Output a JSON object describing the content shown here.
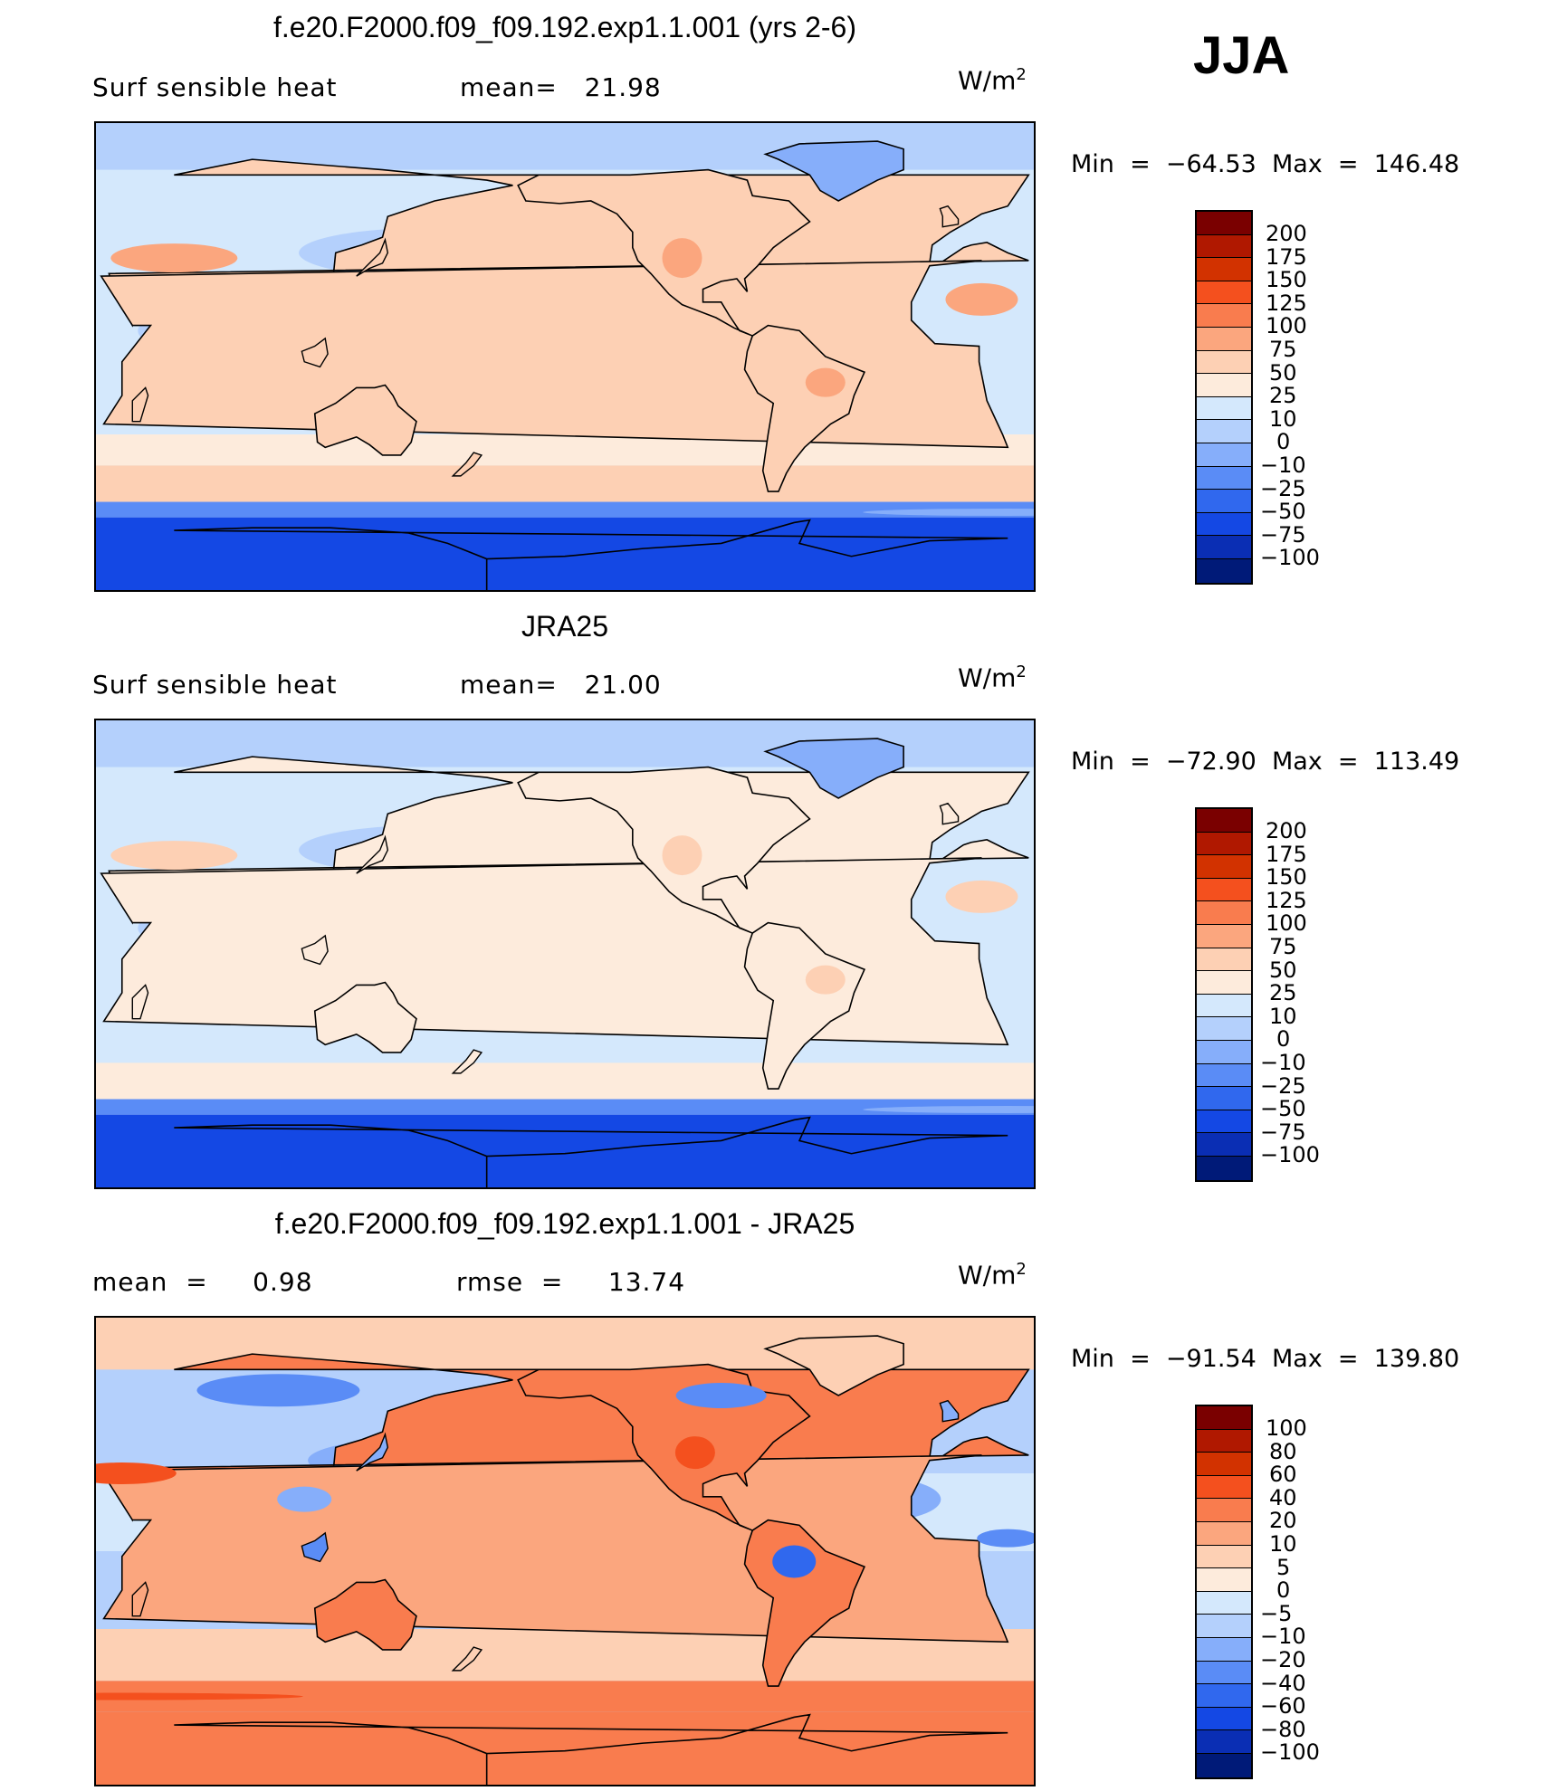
{
  "season": "JJA",
  "palette_main": [
    "#7a0000",
    "#b01800",
    "#d23200",
    "#f4501e",
    "#f97c4e",
    "#fba67e",
    "#fdd0b4",
    "#fdebdc",
    "#d4e8fc",
    "#b4d0fc",
    "#86aefa",
    "#5a8cf6",
    "#3068ee",
    "#1448e4",
    "#0a2eb4",
    "#001a78"
  ],
  "palette_diff": [
    "#7a0000",
    "#b01800",
    "#d23200",
    "#f4501e",
    "#f97c4e",
    "#fba67e",
    "#fdd0b4",
    "#fdebdc",
    "#d4e8fc",
    "#b4d0fc",
    "#86aefa",
    "#5a8cf6",
    "#3068ee",
    "#1448e4",
    "#0a2eb4",
    "#001a78"
  ],
  "panels": [
    {
      "title": "f.e20.F2000.f09_f09.192.exp1.1.001 (yrs 2-6)",
      "left_label": "Surf  sensible  heat",
      "center_label": "mean=   21.98",
      "units": "W/m",
      "units_sup": "2",
      "minmax": "Min  =  −64.53  Max  =  146.48",
      "levels": [
        "200",
        "175",
        "150",
        "125",
        "100",
        "75",
        "50",
        "25",
        "10",
        "0",
        "−10",
        "−25",
        "−50",
        "−75",
        "−100"
      ],
      "style": "model"
    },
    {
      "title": "JRA25",
      "left_label": "Surf  sensible  heat",
      "center_label": "mean=   21.00",
      "units": "W/m",
      "units_sup": "2",
      "minmax": "Min  =  −72.90  Max  =  113.49",
      "levels": [
        "200",
        "175",
        "150",
        "125",
        "100",
        "75",
        "50",
        "25",
        "10",
        "0",
        "−10",
        "−25",
        "−50",
        "−75",
        "−100"
      ],
      "style": "obs"
    },
    {
      "title": "f.e20.F2000.f09_f09.192.exp1.1.001 - JRA25",
      "left_label": "mean  =     0.98",
      "center_label": "rmse  =     13.74",
      "units": "W/m",
      "units_sup": "2",
      "minmax": "Min  =  −91.54  Max  =  139.80",
      "levels": [
        "100",
        "80",
        "60",
        "40",
        "20",
        "10",
        "5",
        "0",
        "−5",
        "−10",
        "−20",
        "−40",
        "−60",
        "−80",
        "−100"
      ],
      "style": "diff"
    }
  ]
}
